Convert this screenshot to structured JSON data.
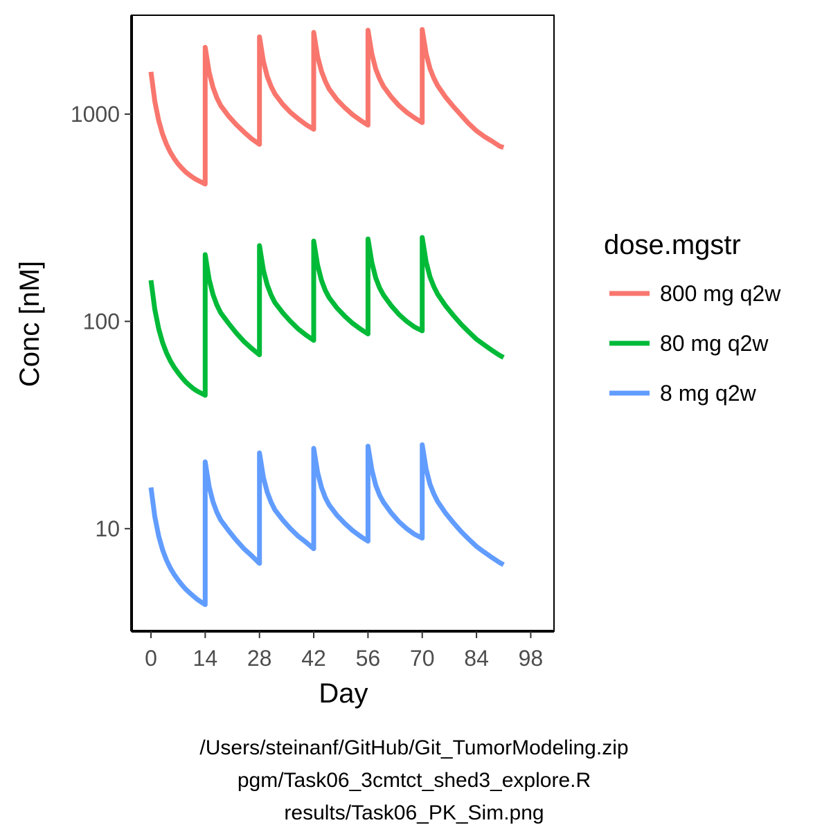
{
  "chart_data": {
    "type": "line",
    "xlabel": "Day",
    "ylabel": "Conc [nM]",
    "x_ticks": [
      0,
      14,
      28,
      42,
      56,
      70,
      84,
      98
    ],
    "y_ticks": [
      10,
      100,
      1000
    ],
    "y_scale": "log10",
    "xlim": [
      -5,
      104
    ],
    "ylim": [
      3.2,
      3000
    ],
    "grid": false,
    "legend_title": "dose.mgstr",
    "legend_position": "right",
    "series": [
      {
        "name": "800 mg q2w",
        "color": "#F8766D",
        "points": [
          [
            0,
            1600
          ],
          [
            1,
            1150
          ],
          [
            2,
            930
          ],
          [
            3,
            800
          ],
          [
            4,
            715
          ],
          [
            5,
            655
          ],
          [
            6,
            610
          ],
          [
            7,
            575
          ],
          [
            8,
            548
          ],
          [
            9,
            525
          ],
          [
            10,
            508
          ],
          [
            11,
            492
          ],
          [
            12,
            480
          ],
          [
            13,
            470
          ],
          [
            14,
            460
          ],
          [
            14,
            2100
          ],
          [
            15,
            1600
          ],
          [
            16,
            1350
          ],
          [
            17,
            1200
          ],
          [
            18,
            1100
          ],
          [
            20,
            980
          ],
          [
            22,
            890
          ],
          [
            24,
            820
          ],
          [
            26,
            760
          ],
          [
            28,
            715
          ],
          [
            28,
            2360
          ],
          [
            29,
            1800
          ],
          [
            30,
            1520
          ],
          [
            31,
            1360
          ],
          [
            32,
            1250
          ],
          [
            34,
            1115
          ],
          [
            36,
            1020
          ],
          [
            38,
            950
          ],
          [
            40,
            890
          ],
          [
            42,
            845
          ],
          [
            42,
            2480
          ],
          [
            43,
            1900
          ],
          [
            44,
            1610
          ],
          [
            45,
            1440
          ],
          [
            46,
            1320
          ],
          [
            48,
            1175
          ],
          [
            50,
            1075
          ],
          [
            52,
            995
          ],
          [
            54,
            935
          ],
          [
            56,
            885
          ],
          [
            56,
            2540
          ],
          [
            57,
            1950
          ],
          [
            58,
            1650
          ],
          [
            59,
            1480
          ],
          [
            60,
            1360
          ],
          [
            62,
            1210
          ],
          [
            64,
            1100
          ],
          [
            66,
            1020
          ],
          [
            68,
            960
          ],
          [
            70,
            910
          ],
          [
            70,
            2560
          ],
          [
            71,
            1960
          ],
          [
            72,
            1660
          ],
          [
            73,
            1490
          ],
          [
            74,
            1370
          ],
          [
            76,
            1210
          ],
          [
            78,
            1090
          ],
          [
            80,
            990
          ],
          [
            82,
            900
          ],
          [
            84,
            830
          ],
          [
            86,
            780
          ],
          [
            88,
            740
          ],
          [
            90,
            700
          ],
          [
            91,
            690
          ]
        ]
      },
      {
        "name": "80 mg q2w",
        "color": "#00BA38",
        "points": [
          [
            0,
            158
          ],
          [
            1,
            114
          ],
          [
            2,
            92
          ],
          [
            3,
            79
          ],
          [
            4,
            70.5
          ],
          [
            5,
            64.5
          ],
          [
            6,
            60
          ],
          [
            7,
            56.5
          ],
          [
            8,
            53.5
          ],
          [
            9,
            51
          ],
          [
            10,
            49
          ],
          [
            11,
            47.3
          ],
          [
            12,
            46
          ],
          [
            13,
            45
          ],
          [
            14,
            44
          ],
          [
            14,
            210
          ],
          [
            15,
            160
          ],
          [
            16,
            135
          ],
          [
            17,
            120
          ],
          [
            18,
            110
          ],
          [
            20,
            98
          ],
          [
            22,
            88
          ],
          [
            24,
            80
          ],
          [
            26,
            74
          ],
          [
            28,
            69
          ],
          [
            28,
            232
          ],
          [
            29,
            177
          ],
          [
            30,
            150
          ],
          [
            31,
            134
          ],
          [
            32,
            123
          ],
          [
            34,
            110
          ],
          [
            36,
            100
          ],
          [
            38,
            92
          ],
          [
            40,
            86
          ],
          [
            42,
            81
          ],
          [
            42,
            244
          ],
          [
            43,
            187
          ],
          [
            44,
            158
          ],
          [
            45,
            141
          ],
          [
            46,
            130
          ],
          [
            48,
            116
          ],
          [
            50,
            106
          ],
          [
            52,
            98
          ],
          [
            54,
            92
          ],
          [
            56,
            87
          ],
          [
            56,
            250
          ],
          [
            57,
            192
          ],
          [
            58,
            162
          ],
          [
            59,
            145
          ],
          [
            60,
            134
          ],
          [
            62,
            119
          ],
          [
            64,
            108
          ],
          [
            66,
            100
          ],
          [
            68,
            94
          ],
          [
            70,
            90
          ],
          [
            70,
            254
          ],
          [
            71,
            194
          ],
          [
            72,
            164
          ],
          [
            73,
            147
          ],
          [
            74,
            135
          ],
          [
            76,
            119
          ],
          [
            78,
            107
          ],
          [
            80,
            97
          ],
          [
            82,
            89
          ],
          [
            84,
            82
          ],
          [
            86,
            77
          ],
          [
            88,
            72.5
          ],
          [
            90,
            68.5
          ],
          [
            91,
            67
          ]
        ]
      },
      {
        "name": "8 mg q2w",
        "color": "#619CFF",
        "points": [
          [
            0,
            15.8
          ],
          [
            1,
            11.4
          ],
          [
            2,
            9.2
          ],
          [
            3,
            7.9
          ],
          [
            4,
            7.05
          ],
          [
            5,
            6.45
          ],
          [
            6,
            6.0
          ],
          [
            7,
            5.65
          ],
          [
            8,
            5.35
          ],
          [
            9,
            5.1
          ],
          [
            10,
            4.9
          ],
          [
            11,
            4.72
          ],
          [
            12,
            4.55
          ],
          [
            13,
            4.42
          ],
          [
            14,
            4.3
          ],
          [
            14,
            21
          ],
          [
            15,
            16
          ],
          [
            16,
            13.5
          ],
          [
            17,
            12
          ],
          [
            18,
            11
          ],
          [
            20,
            9.8
          ],
          [
            22,
            8.8
          ],
          [
            24,
            8.0
          ],
          [
            26,
            7.4
          ],
          [
            28,
            6.8
          ],
          [
            28,
            23.2
          ],
          [
            29,
            17.7
          ],
          [
            30,
            15
          ],
          [
            31,
            13.4
          ],
          [
            32,
            12.3
          ],
          [
            34,
            11
          ],
          [
            36,
            10
          ],
          [
            38,
            9.2
          ],
          [
            40,
            8.6
          ],
          [
            42,
            8.0
          ],
          [
            42,
            24.4
          ],
          [
            43,
            18.7
          ],
          [
            44,
            15.8
          ],
          [
            45,
            14.1
          ],
          [
            46,
            13
          ],
          [
            48,
            11.6
          ],
          [
            50,
            10.6
          ],
          [
            52,
            9.8
          ],
          [
            54,
            9.2
          ],
          [
            56,
            8.7
          ],
          [
            56,
            25
          ],
          [
            57,
            19.2
          ],
          [
            58,
            16.2
          ],
          [
            59,
            14.5
          ],
          [
            60,
            13.4
          ],
          [
            62,
            11.9
          ],
          [
            64,
            10.8
          ],
          [
            66,
            10
          ],
          [
            68,
            9.4
          ],
          [
            70,
            9.0
          ],
          [
            70,
            25.4
          ],
          [
            71,
            19.4
          ],
          [
            72,
            16.4
          ],
          [
            73,
            14.7
          ],
          [
            74,
            13.5
          ],
          [
            76,
            11.9
          ],
          [
            78,
            10.7
          ],
          [
            80,
            9.7
          ],
          [
            82,
            8.9
          ],
          [
            84,
            8.2
          ],
          [
            86,
            7.7
          ],
          [
            88,
            7.25
          ],
          [
            90,
            6.85
          ],
          [
            91,
            6.7
          ]
        ]
      }
    ]
  },
  "caption_lines": [
    "/Users/steinanf/GitHub/Git_TumorModeling.zip",
    "pgm/Task06_3cmtct_shed3_explore.R",
    "results/Task06_PK_Sim.png"
  ]
}
